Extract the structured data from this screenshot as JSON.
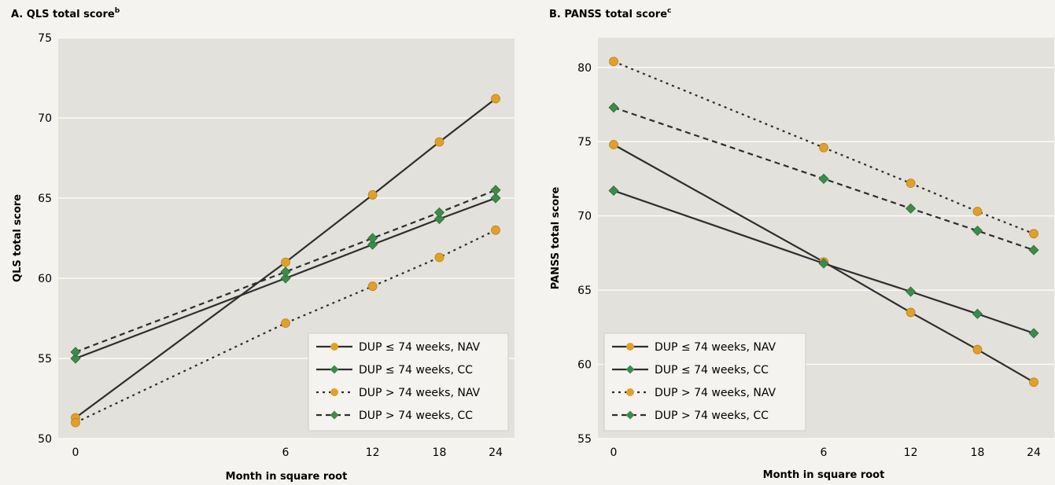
{
  "panels": [
    {
      "title": "A. QLS total score",
      "title_superscript": "b"
    },
    {
      "title": "B. PANSS total score",
      "title_superscript": "c"
    }
  ],
  "colors": {
    "plot_background": "#e2e1dc",
    "gridline": "#fafaf7",
    "line": "#2e2e2e",
    "NAV_marker": "#e0a02a",
    "CC_marker": "#3d8b4a"
  },
  "chart_data": [
    {
      "type": "line",
      "title": "A. QLS total score",
      "xlabel": "Month in square root",
      "ylabel": "QLS total score",
      "x_ticks": [
        0,
        6,
        12,
        18,
        24
      ],
      "x_scale": "sqrt",
      "ylim": [
        50,
        75
      ],
      "y_ticks": [
        50,
        55,
        60,
        65,
        70,
        75
      ],
      "grid": "horizontal",
      "legend_position": "bottom-right",
      "series": [
        {
          "name": "DUP ≤ 74 weeks, NAV",
          "style": "solid",
          "marker": "circle",
          "marker_color": "#e0a02a",
          "x": [
            0,
            6,
            12,
            18,
            24
          ],
          "y": [
            51.3,
            61.0,
            65.2,
            68.5,
            71.2
          ]
        },
        {
          "name": "DUP ≤ 74 weeks, CC",
          "style": "solid",
          "marker": "diamond",
          "marker_color": "#3d8b4a",
          "x": [
            0,
            6,
            12,
            18,
            24
          ],
          "y": [
            55.0,
            60.0,
            62.1,
            63.7,
            65.0
          ]
        },
        {
          "name": "DUP > 74 weeks, NAV",
          "style": "dotted",
          "marker": "circle",
          "marker_color": "#e0a02a",
          "x": [
            0,
            6,
            12,
            18,
            24
          ],
          "y": [
            51.0,
            57.2,
            59.5,
            61.3,
            63.0
          ]
        },
        {
          "name": "DUP > 74 weeks, CC",
          "style": "dashed",
          "marker": "diamond",
          "marker_color": "#3d8b4a",
          "x": [
            0,
            6,
            12,
            18,
            24
          ],
          "y": [
            55.4,
            60.4,
            62.5,
            64.1,
            65.5
          ]
        }
      ]
    },
    {
      "type": "line",
      "title": "B. PANSS total score",
      "xlabel": "Month in square root",
      "ylabel": "PANSS total score",
      "x_ticks": [
        0,
        6,
        12,
        18,
        24
      ],
      "x_scale": "sqrt",
      "ylim": [
        55,
        82
      ],
      "y_ticks": [
        55,
        60,
        65,
        70,
        75,
        80
      ],
      "grid": "horizontal",
      "legend_position": "bottom-left",
      "series": [
        {
          "name": "DUP ≤ 74 weeks, NAV",
          "style": "solid",
          "marker": "circle",
          "marker_color": "#e0a02a",
          "x": [
            0,
            6,
            12,
            18,
            24
          ],
          "y": [
            74.8,
            66.9,
            63.5,
            61.0,
            58.8
          ]
        },
        {
          "name": "DUP ≤ 74 weeks, CC",
          "style": "solid",
          "marker": "diamond",
          "marker_color": "#3d8b4a",
          "x": [
            0,
            6,
            12,
            18,
            24
          ],
          "y": [
            71.7,
            66.8,
            64.9,
            63.4,
            62.1
          ]
        },
        {
          "name": "DUP > 74 weeks, NAV",
          "style": "dotted",
          "marker": "circle",
          "marker_color": "#e0a02a",
          "x": [
            0,
            6,
            12,
            18,
            24
          ],
          "y": [
            80.4,
            74.6,
            72.2,
            70.3,
            68.8
          ]
        },
        {
          "name": "DUP > 74 weeks, CC",
          "style": "dashed",
          "marker": "diamond",
          "marker_color": "#3d8b4a",
          "x": [
            0,
            6,
            12,
            18,
            24
          ],
          "y": [
            77.3,
            72.5,
            70.5,
            69.0,
            67.7
          ]
        }
      ]
    }
  ]
}
